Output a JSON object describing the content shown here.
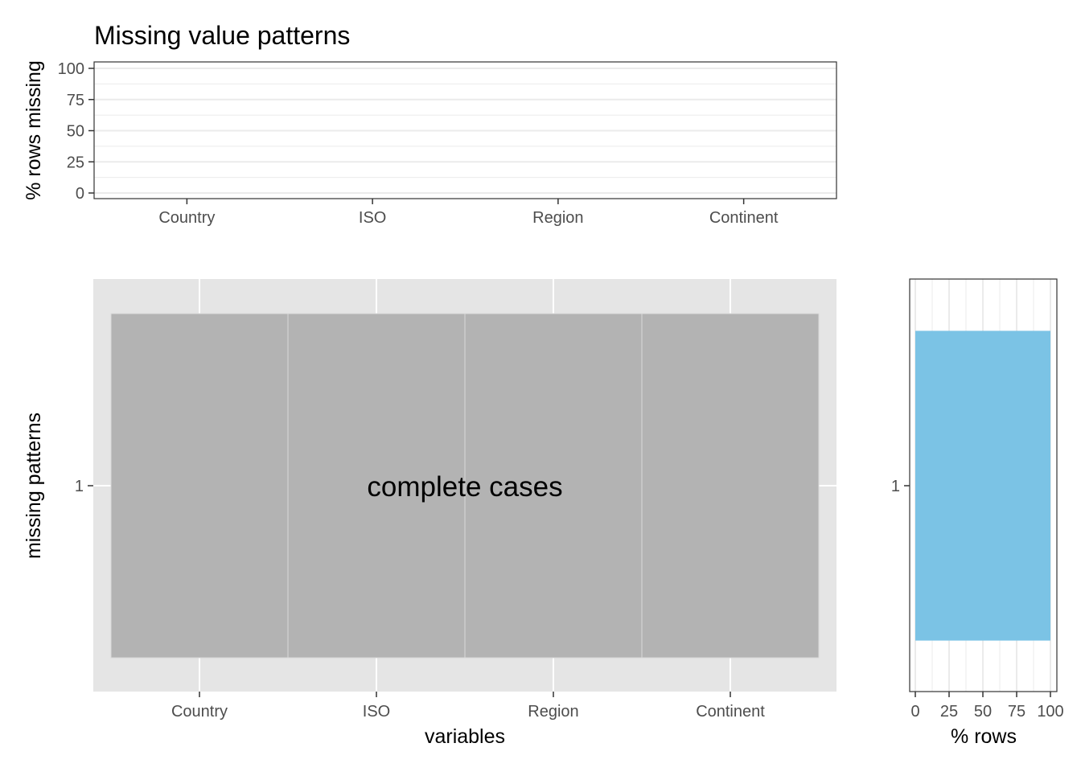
{
  "chart_data": [
    {
      "type": "bar",
      "title": "Missing value patterns",
      "xlabel": "",
      "ylabel": "% rows missing",
      "categories": [
        "Country",
        "ISO",
        "Region",
        "Continent"
      ],
      "values": [
        0,
        0,
        0,
        0
      ],
      "ylim": [
        0,
        100
      ],
      "yticks": [
        "0",
        "25",
        "50",
        "75",
        "100"
      ],
      "grid": true
    },
    {
      "type": "heatmap",
      "xlabel": "variables",
      "ylabel": "missing patterns",
      "x": [
        "Country",
        "ISO",
        "Region",
        "Continent"
      ],
      "y": [
        "1"
      ],
      "cells": [
        [
          false,
          false,
          false,
          false
        ]
      ],
      "annotation": "complete cases",
      "colors": {
        "observed": "#b3b3b3",
        "panel": "#e5e5e5",
        "grid": "#ffffff"
      },
      "grid": true
    },
    {
      "type": "bar",
      "orientation": "horizontal",
      "xlabel": "% rows",
      "ylabel": "",
      "categories": [
        "1"
      ],
      "values": [
        100
      ],
      "xlim": [
        0,
        100
      ],
      "xticks": [
        "0",
        "25",
        "50",
        "75",
        "100"
      ],
      "colors": {
        "bar": "#7bc3e5"
      },
      "grid": true
    }
  ]
}
